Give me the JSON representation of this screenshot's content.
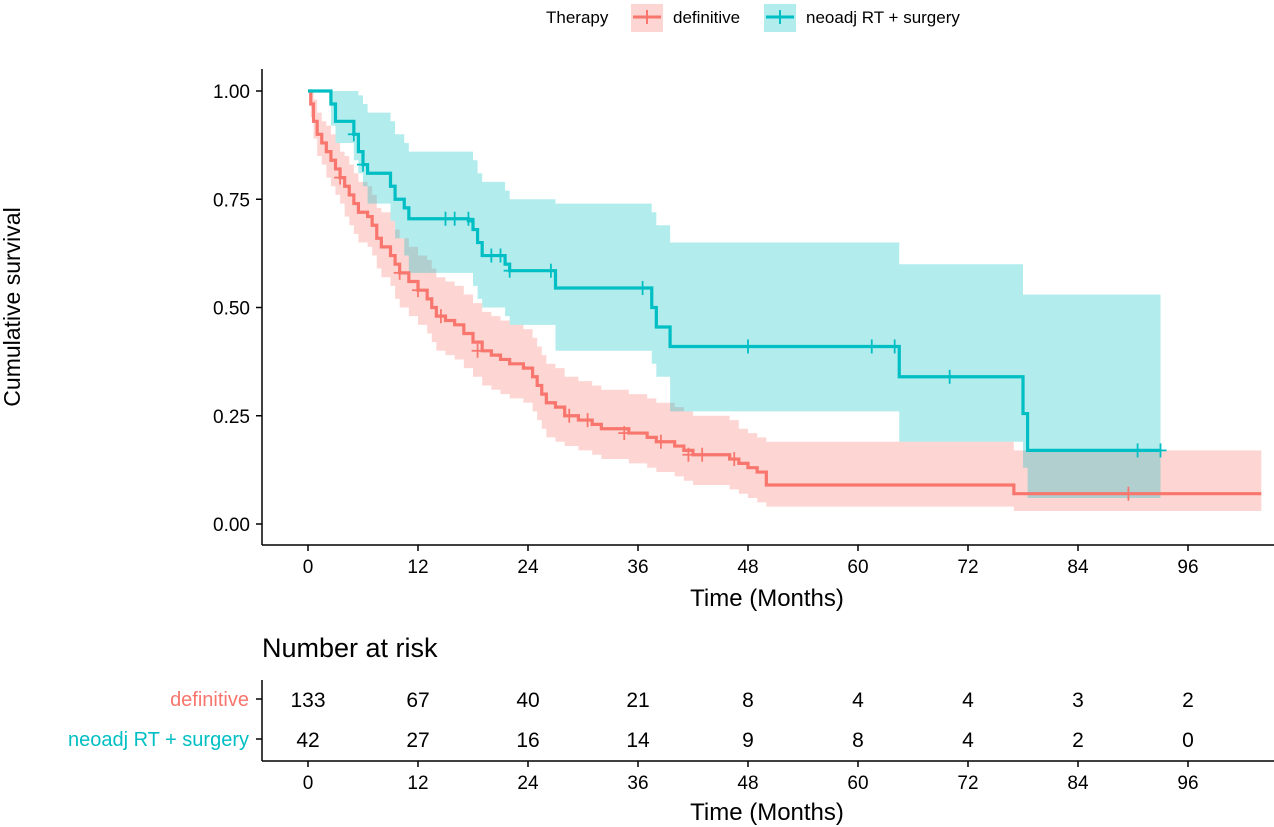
{
  "chart_data": {
    "type": "kaplan-meier",
    "legend": {
      "title": "Therapy",
      "entries": [
        "definitive",
        "neoadj RT + surgery"
      ],
      "placement": "top"
    },
    "ylabel": "Cumulative survival",
    "xlabel": "Time (Months)",
    "xlim": [
      0,
      104
    ],
    "ylim": [
      0,
      1
    ],
    "x_ticks": [
      0,
      12,
      24,
      36,
      48,
      60,
      72,
      84,
      96
    ],
    "x_tick_labels": [
      "0",
      "12",
      "24",
      "36",
      "48",
      "60",
      "72",
      "84",
      "96"
    ],
    "y_ticks": [
      0,
      0.25,
      0.5,
      0.75,
      1.0
    ],
    "y_tick_labels": [
      "0.00",
      "0.25",
      "0.50",
      "0.75",
      "1.00"
    ],
    "series": [
      {
        "name": "definitive",
        "color": "#F8766D",
        "ci_color": "#F8766D",
        "steps": [
          [
            0,
            1.0
          ],
          [
            0.3,
            0.97
          ],
          [
            0.6,
            0.93
          ],
          [
            1.0,
            0.9
          ],
          [
            1.5,
            0.88
          ],
          [
            2.0,
            0.86
          ],
          [
            2.5,
            0.84
          ],
          [
            3.0,
            0.82
          ],
          [
            3.5,
            0.8
          ],
          [
            4.0,
            0.78
          ],
          [
            4.5,
            0.76
          ],
          [
            5.0,
            0.74
          ],
          [
            5.5,
            0.72
          ],
          [
            6.5,
            0.71
          ],
          [
            7.0,
            0.69
          ],
          [
            7.5,
            0.66
          ],
          [
            8.0,
            0.64
          ],
          [
            9.0,
            0.62
          ],
          [
            9.5,
            0.6
          ],
          [
            10.0,
            0.58
          ],
          [
            11.0,
            0.56
          ],
          [
            12.0,
            0.54
          ],
          [
            13.0,
            0.52
          ],
          [
            13.5,
            0.5
          ],
          [
            14.0,
            0.48
          ],
          [
            15.0,
            0.47
          ],
          [
            16.0,
            0.46
          ],
          [
            17.0,
            0.44
          ],
          [
            18.0,
            0.42
          ],
          [
            19.0,
            0.4
          ],
          [
            20.0,
            0.39
          ],
          [
            21.0,
            0.38
          ],
          [
            22.0,
            0.37
          ],
          [
            23.5,
            0.36
          ],
          [
            24.5,
            0.34
          ],
          [
            25.0,
            0.32
          ],
          [
            25.5,
            0.3
          ],
          [
            26.0,
            0.28
          ],
          [
            27.0,
            0.27
          ],
          [
            28.0,
            0.25
          ],
          [
            29.5,
            0.24
          ],
          [
            31.0,
            0.23
          ],
          [
            32.0,
            0.22
          ],
          [
            35.0,
            0.21
          ],
          [
            37.0,
            0.2
          ],
          [
            38.0,
            0.19
          ],
          [
            40.0,
            0.18
          ],
          [
            41.0,
            0.17
          ],
          [
            42.0,
            0.16
          ],
          [
            46.0,
            0.15
          ],
          [
            47.0,
            0.14
          ],
          [
            48.0,
            0.13
          ],
          [
            49.0,
            0.12
          ],
          [
            50.0,
            0.09
          ],
          [
            77.0,
            0.07
          ],
          [
            104,
            0.07
          ]
        ],
        "ci_lower": [
          [
            0,
            1.0
          ],
          [
            0.3,
            0.94
          ],
          [
            0.6,
            0.89
          ],
          [
            1.0,
            0.85
          ],
          [
            1.5,
            0.83
          ],
          [
            2.0,
            0.8
          ],
          [
            2.5,
            0.78
          ],
          [
            3.0,
            0.76
          ],
          [
            3.5,
            0.74
          ],
          [
            4.0,
            0.71
          ],
          [
            4.5,
            0.69
          ],
          [
            5.0,
            0.67
          ],
          [
            5.5,
            0.65
          ],
          [
            6.5,
            0.64
          ],
          [
            7.0,
            0.62
          ],
          [
            7.5,
            0.59
          ],
          [
            8.0,
            0.57
          ],
          [
            9.0,
            0.55
          ],
          [
            9.5,
            0.52
          ],
          [
            10.0,
            0.5
          ],
          [
            11.0,
            0.48
          ],
          [
            12.0,
            0.46
          ],
          [
            13.0,
            0.44
          ],
          [
            13.5,
            0.42
          ],
          [
            14.0,
            0.4
          ],
          [
            15.0,
            0.39
          ],
          [
            16.0,
            0.38
          ],
          [
            17.0,
            0.36
          ],
          [
            18.0,
            0.34
          ],
          [
            19.0,
            0.32
          ],
          [
            20.0,
            0.31
          ],
          [
            21.0,
            0.3
          ],
          [
            22.0,
            0.29
          ],
          [
            23.5,
            0.28
          ],
          [
            24.5,
            0.26
          ],
          [
            25.0,
            0.24
          ],
          [
            25.5,
            0.22
          ],
          [
            26.0,
            0.2
          ],
          [
            27.0,
            0.19
          ],
          [
            28.0,
            0.18
          ],
          [
            29.5,
            0.17
          ],
          [
            31.0,
            0.16
          ],
          [
            32.0,
            0.15
          ],
          [
            35.0,
            0.14
          ],
          [
            37.0,
            0.13
          ],
          [
            38.0,
            0.12
          ],
          [
            40.0,
            0.11
          ],
          [
            41.0,
            0.1
          ],
          [
            42.0,
            0.09
          ],
          [
            46.0,
            0.08
          ],
          [
            47.0,
            0.07
          ],
          [
            48.0,
            0.06
          ],
          [
            49.0,
            0.05
          ],
          [
            50.0,
            0.04
          ],
          [
            77.0,
            0.03
          ],
          [
            104,
            0.03
          ]
        ],
        "ci_upper": [
          [
            0,
            1.0
          ],
          [
            0.3,
            1.0
          ],
          [
            0.6,
            0.98
          ],
          [
            1.0,
            0.95
          ],
          [
            1.5,
            0.93
          ],
          [
            2.0,
            0.92
          ],
          [
            2.5,
            0.9
          ],
          [
            3.0,
            0.88
          ],
          [
            3.5,
            0.86
          ],
          [
            4.0,
            0.85
          ],
          [
            4.5,
            0.83
          ],
          [
            5.0,
            0.81
          ],
          [
            5.5,
            0.79
          ],
          [
            6.5,
            0.78
          ],
          [
            7.0,
            0.76
          ],
          [
            7.5,
            0.73
          ],
          [
            8.0,
            0.72
          ],
          [
            9.0,
            0.7
          ],
          [
            9.5,
            0.68
          ],
          [
            10.0,
            0.66
          ],
          [
            11.0,
            0.64
          ],
          [
            12.0,
            0.62
          ],
          [
            13.0,
            0.61
          ],
          [
            13.5,
            0.59
          ],
          [
            14.0,
            0.57
          ],
          [
            15.0,
            0.56
          ],
          [
            16.0,
            0.55
          ],
          [
            17.0,
            0.53
          ],
          [
            18.0,
            0.51
          ],
          [
            19.0,
            0.49
          ],
          [
            20.0,
            0.48
          ],
          [
            21.0,
            0.47
          ],
          [
            22.0,
            0.46
          ],
          [
            23.5,
            0.45
          ],
          [
            24.5,
            0.43
          ],
          [
            25.0,
            0.41
          ],
          [
            25.5,
            0.39
          ],
          [
            26.0,
            0.37
          ],
          [
            27.0,
            0.36
          ],
          [
            28.0,
            0.34
          ],
          [
            29.5,
            0.33
          ],
          [
            31.0,
            0.32
          ],
          [
            32.0,
            0.31
          ],
          [
            35.0,
            0.3
          ],
          [
            37.0,
            0.29
          ],
          [
            38.0,
            0.28
          ],
          [
            40.0,
            0.27
          ],
          [
            41.0,
            0.26
          ],
          [
            42.0,
            0.25
          ],
          [
            46.0,
            0.24
          ],
          [
            47.0,
            0.22
          ],
          [
            48.0,
            0.21
          ],
          [
            49.0,
            0.2
          ],
          [
            50.0,
            0.19
          ],
          [
            77.0,
            0.17
          ],
          [
            104,
            0.17
          ]
        ],
        "censors": [
          [
            3.5,
            0.8
          ],
          [
            10.0,
            0.58
          ],
          [
            12.0,
            0.54
          ],
          [
            14.5,
            0.48
          ],
          [
            18.5,
            0.4
          ],
          [
            28.5,
            0.25
          ],
          [
            30.5,
            0.24
          ],
          [
            34.5,
            0.21
          ],
          [
            38.5,
            0.19
          ],
          [
            41.5,
            0.16
          ],
          [
            43.0,
            0.16
          ],
          [
            46.5,
            0.15
          ],
          [
            89.5,
            0.07
          ]
        ]
      },
      {
        "name": "neoadj RT + surgery",
        "color": "#00BFC4",
        "ci_color": "#00BFC4",
        "steps": [
          [
            0,
            1.0
          ],
          [
            2.5,
            0.97
          ],
          [
            3.0,
            0.93
          ],
          [
            5.0,
            0.9
          ],
          [
            5.5,
            0.86
          ],
          [
            6.0,
            0.83
          ],
          [
            6.5,
            0.81
          ],
          [
            9.0,
            0.78
          ],
          [
            9.5,
            0.75
          ],
          [
            10.5,
            0.73
          ],
          [
            11.0,
            0.705
          ],
          [
            17.5,
            0.7
          ],
          [
            18.0,
            0.68
          ],
          [
            18.5,
            0.65
          ],
          [
            19.0,
            0.62
          ],
          [
            21.5,
            0.6
          ],
          [
            22.0,
            0.585
          ],
          [
            27.0,
            0.545
          ],
          [
            37.5,
            0.5
          ],
          [
            38.0,
            0.455
          ],
          [
            39.5,
            0.41
          ],
          [
            64.5,
            0.34
          ],
          [
            78.0,
            0.255
          ],
          [
            78.5,
            0.17
          ],
          [
            93.0,
            0.17
          ]
        ],
        "ci_lower": [
          [
            0,
            1.0
          ],
          [
            2.5,
            0.92
          ],
          [
            3.0,
            0.88
          ],
          [
            5.0,
            0.84
          ],
          [
            5.5,
            0.81
          ],
          [
            6.0,
            0.78
          ],
          [
            6.5,
            0.74
          ],
          [
            9.0,
            0.7
          ],
          [
            9.5,
            0.66
          ],
          [
            10.5,
            0.62
          ],
          [
            11.0,
            0.58
          ],
          [
            17.5,
            0.58
          ],
          [
            18.0,
            0.55
          ],
          [
            18.5,
            0.52
          ],
          [
            19.0,
            0.5
          ],
          [
            21.5,
            0.48
          ],
          [
            22.0,
            0.46
          ],
          [
            27.0,
            0.4
          ],
          [
            37.5,
            0.37
          ],
          [
            38.0,
            0.34
          ],
          [
            39.5,
            0.26
          ],
          [
            64.5,
            0.19
          ],
          [
            78.0,
            0.13
          ],
          [
            78.5,
            0.06
          ],
          [
            93.0,
            0.06
          ]
        ],
        "ci_upper": [
          [
            0,
            1.0
          ],
          [
            2.5,
            1.0
          ],
          [
            3.0,
            1.0
          ],
          [
            5.0,
            1.0
          ],
          [
            5.5,
            0.99
          ],
          [
            6.0,
            0.97
          ],
          [
            6.5,
            0.95
          ],
          [
            9.0,
            0.93
          ],
          [
            9.5,
            0.9
          ],
          [
            10.5,
            0.88
          ],
          [
            11.0,
            0.86
          ],
          [
            17.5,
            0.86
          ],
          [
            18.0,
            0.84
          ],
          [
            18.5,
            0.81
          ],
          [
            19.0,
            0.79
          ],
          [
            21.5,
            0.77
          ],
          [
            22.0,
            0.75
          ],
          [
            27.0,
            0.74
          ],
          [
            37.5,
            0.72
          ],
          [
            38.0,
            0.69
          ],
          [
            39.5,
            0.65
          ],
          [
            64.5,
            0.6
          ],
          [
            78.0,
            0.53
          ],
          [
            78.5,
            0.53
          ],
          [
            93.0,
            0.53
          ]
        ],
        "censors": [
          [
            5.0,
            0.9
          ],
          [
            6.0,
            0.83
          ],
          [
            15.0,
            0.705
          ],
          [
            16.0,
            0.705
          ],
          [
            17.5,
            0.705
          ],
          [
            20.0,
            0.62
          ],
          [
            21.0,
            0.62
          ],
          [
            22.0,
            0.585
          ],
          [
            26.5,
            0.585
          ],
          [
            36.5,
            0.545
          ],
          [
            48.0,
            0.41
          ],
          [
            61.5,
            0.41
          ],
          [
            64.0,
            0.41
          ],
          [
            70.0,
            0.34
          ],
          [
            90.5,
            0.17
          ],
          [
            93.0,
            0.17
          ]
        ]
      }
    ]
  },
  "risk_table": {
    "title": "Number at risk",
    "xlabel": "Time (Months)",
    "times": [
      0,
      12,
      24,
      36,
      48,
      60,
      72,
      84,
      96
    ],
    "time_labels": [
      "0",
      "12",
      "24",
      "36",
      "48",
      "60",
      "72",
      "84",
      "96"
    ],
    "rows": [
      {
        "name": "definitive",
        "color": "#F8766D",
        "counts": [
          "133",
          "67",
          "40",
          "21",
          "8",
          "4",
          "4",
          "3",
          "2"
        ]
      },
      {
        "name": "neoadj RT + surgery",
        "color": "#00BFC4",
        "counts": [
          "42",
          "27",
          "16",
          "14",
          "9",
          "8",
          "4",
          "2",
          "0"
        ]
      }
    ]
  }
}
